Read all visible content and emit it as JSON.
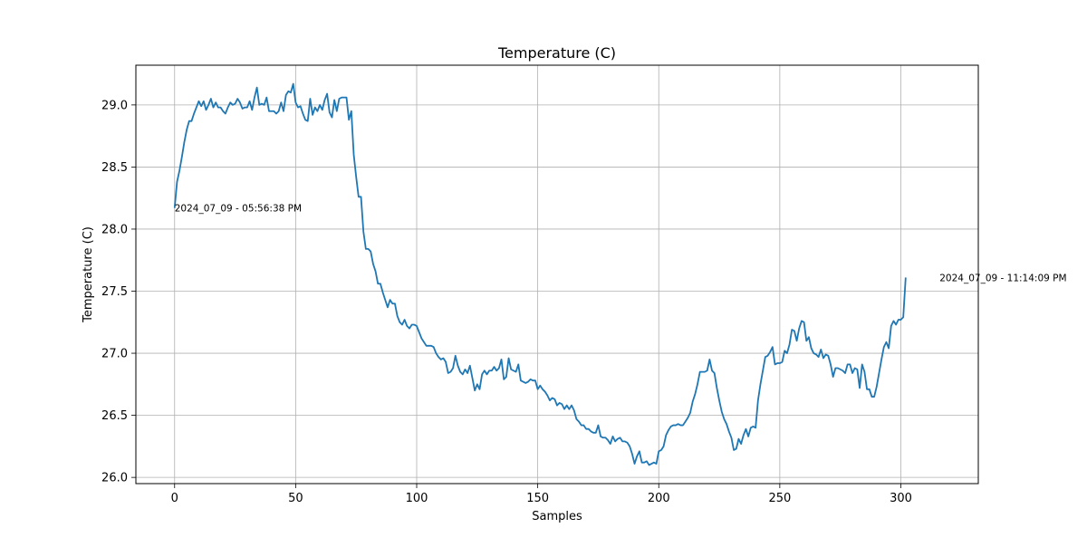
{
  "chart_data": {
    "type": "line",
    "title": "Temperature (C)",
    "xlabel": "Samples",
    "ylabel": "Temperature (C)",
    "xlim": [
      -16,
      332
    ],
    "ylim": [
      25.95,
      29.32
    ],
    "xticks": [
      0,
      50,
      100,
      150,
      200,
      250,
      300
    ],
    "yticks": [
      26.0,
      26.5,
      27.0,
      27.5,
      28.0,
      28.5,
      29.0
    ],
    "xtick_labels": [
      "0",
      "50",
      "100",
      "150",
      "200",
      "250",
      "300"
    ],
    "ytick_labels": [
      "26.0",
      "26.5",
      "27.0",
      "27.5",
      "28.0",
      "28.5",
      "29.0"
    ],
    "grid": true,
    "legend": "none",
    "series_color": "#1f77b4",
    "annotations": [
      {
        "x": 0,
        "y": 28.17,
        "text": "2024_07_09 - 05:56:38 PM"
      },
      {
        "x": 316,
        "y": 27.61,
        "text": "2024_07_09 - 11:14:09 PM"
      }
    ],
    "series": [
      {
        "y": [
          28.17,
          28.38,
          28.47,
          28.58,
          28.7,
          28.8,
          28.87,
          28.87,
          28.93,
          28.98,
          29.03,
          28.99,
          29.03,
          28.96,
          29.0,
          29.05,
          28.98,
          29.02,
          28.98,
          28.98,
          28.95,
          28.93,
          28.98,
          29.02,
          29.0,
          29.01,
          29.05,
          29.02,
          28.97,
          28.98,
          28.98,
          29.03,
          28.96,
          29.06,
          29.14,
          29.0,
          29.01,
          29.0,
          29.06,
          28.95,
          28.95,
          28.95,
          28.93,
          28.95,
          29.02,
          28.95,
          29.08,
          29.11,
          29.1,
          29.17,
          29.02,
          28.98,
          28.99,
          28.93,
          28.88,
          28.87,
          29.05,
          28.92,
          28.98,
          28.95,
          29.0,
          28.96,
          29.04,
          29.09,
          28.94,
          28.9,
          29.04,
          28.95,
          29.05,
          29.06,
          29.06,
          29.06,
          28.88,
          28.95,
          28.6,
          28.42,
          28.26,
          28.26,
          27.98,
          27.84,
          27.84,
          27.82,
          27.72,
          27.66,
          27.56,
          27.56,
          27.49,
          27.43,
          27.37,
          27.43,
          27.4,
          27.4,
          27.3,
          27.25,
          27.23,
          27.27,
          27.22,
          27.2,
          27.23,
          27.23,
          27.22,
          27.17,
          27.12,
          27.09,
          27.06,
          27.06,
          27.06,
          27.05,
          27.0,
          26.97,
          26.95,
          26.96,
          26.93,
          26.84,
          26.85,
          26.88,
          26.98,
          26.9,
          26.85,
          26.83,
          26.87,
          26.84,
          26.9,
          26.8,
          26.7,
          26.75,
          26.71,
          26.83,
          26.86,
          26.83,
          26.86,
          26.86,
          26.89,
          26.86,
          26.88,
          26.95,
          26.79,
          26.81,
          26.96,
          26.87,
          26.86,
          26.85,
          26.91,
          26.78,
          26.77,
          26.76,
          26.77,
          26.79,
          26.78,
          26.78,
          26.71,
          26.74,
          26.71,
          26.69,
          26.66,
          26.62,
          26.64,
          26.63,
          26.58,
          26.6,
          26.59,
          26.55,
          26.58,
          26.55,
          26.58,
          26.54,
          26.47,
          26.45,
          26.42,
          26.42,
          26.39,
          26.39,
          26.37,
          26.36,
          26.36,
          26.42,
          26.33,
          26.32,
          26.32,
          26.3,
          26.27,
          26.33,
          26.29,
          26.31,
          26.32,
          26.29,
          26.29,
          26.28,
          26.25,
          26.19,
          26.11,
          26.17,
          26.21,
          26.12,
          26.12,
          26.13,
          26.1,
          26.11,
          26.12,
          26.11,
          26.21,
          26.22,
          26.25,
          26.34,
          26.38,
          26.41,
          26.42,
          26.42,
          26.43,
          26.42,
          26.42,
          26.45,
          26.48,
          26.52,
          26.61,
          26.67,
          26.75,
          26.85,
          26.85,
          26.85,
          26.86,
          26.95,
          26.86,
          26.84,
          26.72,
          26.62,
          26.53,
          26.47,
          26.43,
          26.37,
          26.32,
          26.22,
          26.23,
          26.31,
          26.27,
          26.34,
          26.39,
          26.33,
          26.4,
          26.41,
          26.4,
          26.62,
          26.75,
          26.86,
          26.97,
          26.98,
          27.01,
          27.05,
          26.91,
          26.92,
          26.92,
          26.93,
          27.02,
          27.0,
          27.07,
          27.19,
          27.18,
          27.1,
          27.2,
          27.26,
          27.25,
          27.1,
          27.13,
          27.04,
          27.0,
          26.99,
          26.97,
          27.03,
          26.96,
          26.99,
          26.98,
          26.91,
          26.81,
          26.88,
          26.88,
          26.87,
          26.86,
          26.84,
          26.91,
          26.91,
          26.84,
          26.88,
          26.87,
          26.72,
          26.91,
          26.85,
          26.71,
          26.71,
          26.65,
          26.65,
          26.73,
          26.84,
          26.95,
          27.05,
          27.09,
          27.04,
          27.22,
          27.26,
          27.23,
          27.27,
          27.27,
          27.29,
          27.61
        ]
      }
    ]
  }
}
